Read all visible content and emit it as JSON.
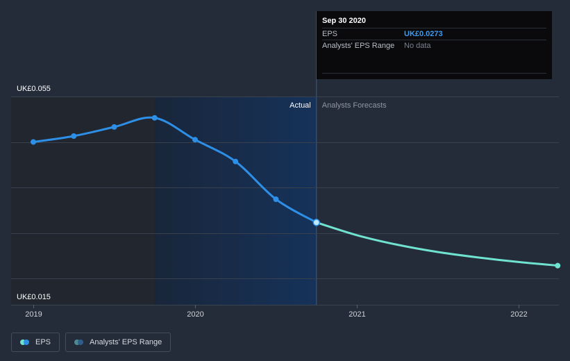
{
  "chart_data": {
    "type": "line",
    "y_axis": {
      "top_label": "UK£0.055",
      "bottom_label": "UK£0.015",
      "ylim": [
        0.015,
        0.055
      ],
      "gridlines": [
        0.015,
        0.025,
        0.035,
        0.045,
        0.055
      ]
    },
    "x_axis": {
      "xlim": [
        2018.96,
        2022.25
      ],
      "ticks": [
        {
          "value": 2019,
          "label": "2019"
        },
        {
          "value": 2020,
          "label": "2020"
        },
        {
          "value": 2021,
          "label": "2021"
        },
        {
          "value": 2022,
          "label": "2022"
        }
      ]
    },
    "regions": {
      "actual_label": "Actual",
      "forecast_label": "Analysts Forecasts",
      "shaded_start": 2019.75,
      "split": 2020.75
    },
    "series": [
      {
        "name": "EPS",
        "color": "#2e8fe6",
        "points": [
          {
            "x": 2019.0,
            "y": 0.045
          },
          {
            "x": 2019.25,
            "y": 0.0463
          },
          {
            "x": 2019.5,
            "y": 0.0483
          },
          {
            "x": 2019.75,
            "y": 0.0503
          },
          {
            "x": 2020.0,
            "y": 0.0455
          },
          {
            "x": 2020.25,
            "y": 0.0407
          },
          {
            "x": 2020.5,
            "y": 0.0324
          },
          {
            "x": 2020.75,
            "y": 0.0273
          }
        ]
      },
      {
        "name": "EPS forecast",
        "color": "#6fe3d0",
        "points": [
          {
            "x": 2020.75,
            "y": 0.0273
          },
          {
            "x": 2021.0,
            "y": 0.0245
          },
          {
            "x": 2021.25,
            "y": 0.0224
          },
          {
            "x": 2021.5,
            "y": 0.0208
          },
          {
            "x": 2021.75,
            "y": 0.0196
          },
          {
            "x": 2022.0,
            "y": 0.0186
          },
          {
            "x": 2022.25,
            "y": 0.0178
          }
        ]
      }
    ]
  },
  "tooltip": {
    "date": "Sep 30 2020",
    "eps_label": "EPS",
    "eps_value": "UK£0.0273",
    "range_label": "Analysts' EPS Range",
    "range_value": "No data"
  },
  "legend": {
    "eps_label": "EPS",
    "range_label": "Analysts' EPS Range",
    "eps_colors": [
      "#6fe3d0",
      "#2e8fe6"
    ],
    "range_colors": [
      "#4a8c91",
      "#2d5f8a"
    ]
  }
}
